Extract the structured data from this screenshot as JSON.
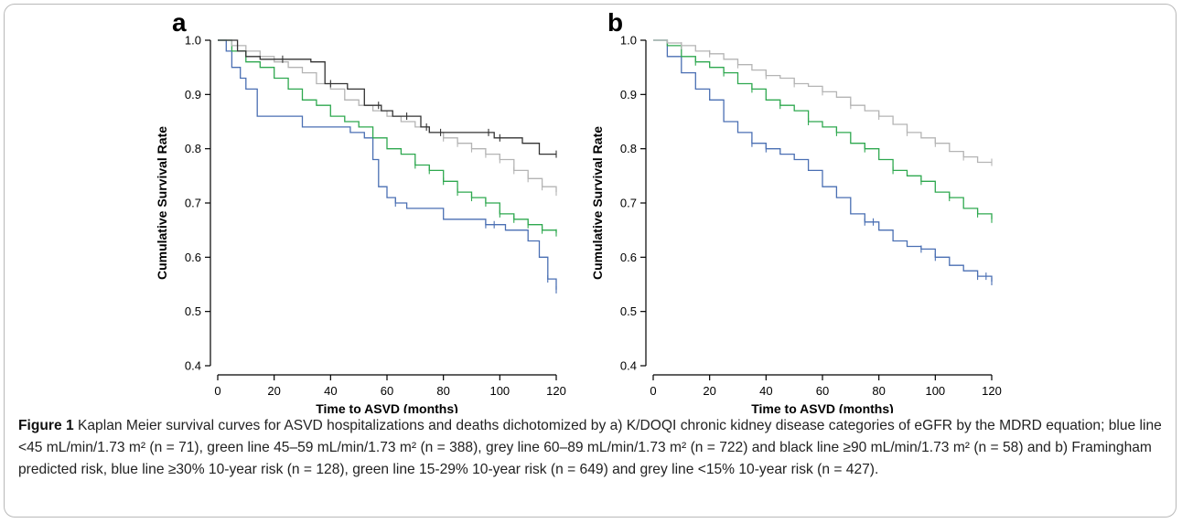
{
  "chart_data": [
    {
      "type": "line",
      "panel_label": "a",
      "title": "",
      "xlabel": "Time to ASVD (months)",
      "ylabel": "Cumulative Survival Rate",
      "xlim": [
        0,
        120
      ],
      "ylim": [
        0.4,
        1.0
      ],
      "xticks": [
        0,
        20,
        40,
        60,
        80,
        100,
        120
      ],
      "yticks": [
        0.4,
        0.5,
        0.6,
        0.7,
        0.8,
        0.9,
        1.0
      ],
      "yticklabels": [
        "0.4",
        "0.5",
        "0.6",
        "0.7",
        "0.8",
        "0.9",
        "1.0"
      ],
      "grid": false,
      "series": [
        {
          "color": "#4a6fb3",
          "x": [
            0,
            3,
            5,
            8,
            10,
            14,
            18,
            22,
            30,
            42,
            47,
            52,
            55,
            57,
            60,
            63,
            67,
            80,
            95,
            102,
            110,
            114,
            117,
            120
          ],
          "y": [
            1.0,
            0.98,
            0.95,
            0.93,
            0.91,
            0.86,
            0.86,
            0.86,
            0.84,
            0.84,
            0.83,
            0.82,
            0.78,
            0.73,
            0.71,
            0.7,
            0.69,
            0.67,
            0.66,
            0.65,
            0.63,
            0.6,
            0.56,
            0.54
          ],
          "censor_x": [
            63,
            95,
            98,
            117,
            120
          ]
        },
        {
          "color": "#2ea84f",
          "x": [
            0,
            5,
            10,
            15,
            20,
            25,
            30,
            35,
            40,
            45,
            50,
            55,
            60,
            65,
            70,
            75,
            80,
            85,
            90,
            95,
            100,
            105,
            110,
            115,
            120
          ],
          "y": [
            1.0,
            0.98,
            0.96,
            0.95,
            0.93,
            0.91,
            0.89,
            0.88,
            0.86,
            0.85,
            0.84,
            0.82,
            0.8,
            0.79,
            0.77,
            0.76,
            0.74,
            0.72,
            0.71,
            0.7,
            0.68,
            0.67,
            0.66,
            0.65,
            0.645
          ],
          "censor_x": [
            70,
            75,
            80,
            85,
            90,
            95,
            100,
            105,
            110,
            115,
            120
          ]
        },
        {
          "color": "#b4b4b4",
          "x": [
            0,
            5,
            10,
            15,
            20,
            25,
            30,
            35,
            40,
            45,
            50,
            55,
            60,
            65,
            70,
            75,
            80,
            85,
            90,
            95,
            100,
            105,
            110,
            115,
            120
          ],
          "y": [
            1.0,
            0.99,
            0.98,
            0.97,
            0.96,
            0.95,
            0.94,
            0.92,
            0.91,
            0.89,
            0.88,
            0.87,
            0.86,
            0.85,
            0.84,
            0.83,
            0.82,
            0.81,
            0.8,
            0.79,
            0.78,
            0.76,
            0.745,
            0.73,
            0.72
          ],
          "censor_x": [
            80,
            85,
            90,
            95,
            100,
            105,
            110,
            115,
            120
          ]
        },
        {
          "color": "#333333",
          "x": [
            0,
            7,
            10,
            15,
            25,
            33,
            38,
            46,
            52,
            58,
            62,
            65,
            72,
            75,
            90,
            98,
            108,
            114,
            120
          ],
          "y": [
            1.0,
            0.98,
            0.97,
            0.965,
            0.965,
            0.96,
            0.92,
            0.91,
            0.88,
            0.87,
            0.86,
            0.86,
            0.84,
            0.83,
            0.83,
            0.82,
            0.81,
            0.79,
            0.79
          ],
          "censor_x": [
            23,
            40,
            57,
            67,
            74,
            79,
            96,
            100,
            120
          ]
        }
      ]
    },
    {
      "type": "line",
      "panel_label": "b",
      "title": "",
      "xlabel": "Time to ASVD (months)",
      "ylabel": "Cumulative Survival Rate",
      "xlim": [
        0,
        120
      ],
      "ylim": [
        0.4,
        1.0
      ],
      "xticks": [
        0,
        20,
        40,
        60,
        80,
        100,
        120
      ],
      "yticks": [
        0.4,
        0.5,
        0.6,
        0.7,
        0.8,
        0.9,
        1.0
      ],
      "yticklabels": [
        "0.4",
        "0.5",
        "0.6",
        "0.7",
        "0.8",
        "0.9",
        "1.0"
      ],
      "grid": false,
      "series": [
        {
          "color": "#4a6fb3",
          "x": [
            0,
            5,
            10,
            15,
            20,
            25,
            30,
            35,
            40,
            45,
            50,
            55,
            60,
            65,
            70,
            75,
            80,
            85,
            90,
            95,
            100,
            105,
            110,
            115,
            120
          ],
          "y": [
            1.0,
            0.97,
            0.94,
            0.91,
            0.89,
            0.85,
            0.83,
            0.81,
            0.8,
            0.79,
            0.78,
            0.76,
            0.73,
            0.71,
            0.68,
            0.665,
            0.65,
            0.63,
            0.62,
            0.615,
            0.6,
            0.585,
            0.575,
            0.565,
            0.555
          ],
          "censor_x": [
            35,
            40,
            75,
            78,
            95,
            100,
            115,
            118,
            120
          ]
        },
        {
          "color": "#2ea84f",
          "x": [
            0,
            5,
            10,
            15,
            20,
            25,
            30,
            35,
            40,
            45,
            50,
            55,
            60,
            65,
            70,
            75,
            80,
            85,
            90,
            95,
            100,
            105,
            110,
            115,
            120
          ],
          "y": [
            1.0,
            0.99,
            0.97,
            0.96,
            0.95,
            0.94,
            0.92,
            0.91,
            0.89,
            0.88,
            0.87,
            0.85,
            0.84,
            0.83,
            0.81,
            0.8,
            0.78,
            0.76,
            0.75,
            0.74,
            0.72,
            0.71,
            0.69,
            0.68,
            0.67
          ],
          "censor_x": [
            15,
            25,
            35,
            45,
            55,
            65,
            75,
            85,
            95,
            105,
            115,
            120
          ]
        },
        {
          "color": "#b4b4b4",
          "x": [
            0,
            5,
            10,
            15,
            20,
            25,
            30,
            35,
            40,
            45,
            50,
            55,
            60,
            65,
            70,
            75,
            80,
            85,
            90,
            95,
            100,
            105,
            110,
            115,
            120
          ],
          "y": [
            1.0,
            0.995,
            0.99,
            0.98,
            0.975,
            0.965,
            0.955,
            0.945,
            0.935,
            0.93,
            0.92,
            0.915,
            0.905,
            0.895,
            0.88,
            0.87,
            0.86,
            0.845,
            0.83,
            0.82,
            0.81,
            0.795,
            0.785,
            0.775,
            0.775
          ],
          "censor_x": [
            10,
            20,
            30,
            40,
            50,
            60,
            70,
            80,
            90,
            100,
            110,
            120
          ]
        }
      ]
    }
  ],
  "caption": {
    "figure_label": "Figure 1",
    "text": " Kaplan Meier survival curves for ASVD hospitalizations and deaths dichotomized by a) K/DOQI chronic kidney disease categories of eGFR by the MDRD equation; blue line <45 mL/min/1.73 m² (n = 71), green line 45–59 mL/min/1.73 m² (n = 388), grey line 60–89 mL/min/1.73 m² (n = 722) and black line ≥90 mL/min/1.73 m² (n = 58) and b) Framingham predicted risk, blue line ≥30% 10-year risk (n = 128), green line 15-29% 10-year risk (n = 649) and grey line <15% 10-year risk (n = 427)."
  }
}
